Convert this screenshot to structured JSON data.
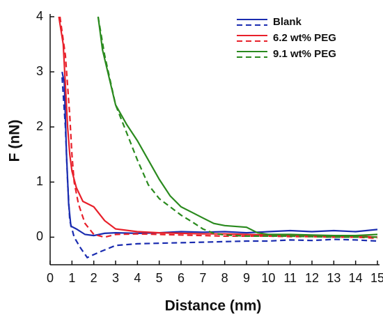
{
  "chart_data": {
    "type": "line",
    "xlabel": "Distance (nm)",
    "ylabel": "F (nN)",
    "xlim": [
      0,
      15
    ],
    "xticks": [
      0,
      1,
      2,
      3,
      4,
      5,
      6,
      7,
      8,
      9,
      10,
      11,
      12,
      13,
      14,
      15
    ],
    "ylim": [
      -0.5,
      4
    ],
    "yticks": [
      0,
      1,
      2,
      3,
      4
    ],
    "legend": "upper right",
    "series": [
      {
        "name": "Blank",
        "color": "#1a2cb0",
        "lines": [
          {
            "dash": false,
            "x": [
              0.55,
              0.65,
              0.75,
              0.85,
              0.95,
              1.2,
              1.6,
              2,
              2.5,
              3,
              4,
              5,
              6,
              7,
              8,
              9,
              10,
              11,
              12,
              13,
              14,
              15
            ],
            "values": [
              3.0,
              2.8,
              1.5,
              0.6,
              0.2,
              0.15,
              0.05,
              0.03,
              0.07,
              0.08,
              0.07,
              0.08,
              0.1,
              0.09,
              0.1,
              0.08,
              0.1,
              0.12,
              0.1,
              0.12,
              0.1,
              0.14
            ]
          },
          {
            "dash": true,
            "x": [
              0.55,
              0.7,
              0.8,
              0.9,
              1.1,
              1.4,
              1.7,
              2.2,
              3,
              4,
              5,
              6,
              7,
              8,
              9,
              10,
              11,
              12,
              13,
              14,
              15
            ],
            "values": [
              2.9,
              2.0,
              1.0,
              0.3,
              0.0,
              -0.2,
              -0.37,
              -0.28,
              -0.15,
              -0.12,
              -0.11,
              -0.1,
              -0.09,
              -0.08,
              -0.07,
              -0.07,
              -0.05,
              -0.06,
              -0.04,
              -0.05,
              -0.07
            ]
          }
        ]
      },
      {
        "name": "6.2 wt% PEG",
        "color": "#e8202a",
        "lines": [
          {
            "dash": false,
            "x": [
              0.4,
              0.6,
              0.8,
              0.9,
              1.0,
              1.2,
              1.5,
              2,
              2.5,
              3,
              4,
              5,
              6,
              7,
              8,
              9,
              10,
              11,
              12,
              13,
              14,
              15
            ],
            "values": [
              4.0,
              3.5,
              2.0,
              1.5,
              1.2,
              0.9,
              0.65,
              0.55,
              0.3,
              0.15,
              0.1,
              0.08,
              0.07,
              0.06,
              0.06,
              0.05,
              0.04,
              0.03,
              0.03,
              0.02,
              0.02,
              0.0
            ]
          },
          {
            "dash": true,
            "x": [
              0.45,
              0.7,
              0.9,
              1.0,
              1.1,
              1.3,
              1.6,
              2,
              2.5,
              3,
              4,
              5,
              6,
              7,
              8,
              9,
              10,
              11,
              12,
              13,
              14,
              15
            ],
            "values": [
              4.0,
              3.3,
              2.2,
              1.5,
              1.0,
              0.6,
              0.25,
              0.05,
              0.0,
              0.05,
              0.06,
              0.05,
              0.04,
              0.03,
              0.02,
              0.02,
              0.02,
              0.01,
              0.01,
              0.0,
              0.0,
              -0.02
            ]
          }
        ]
      },
      {
        "name": "9.1 wt% PEG",
        "color": "#2a8a1e",
        "lines": [
          {
            "dash": false,
            "x": [
              2.2,
              2.4,
              2.7,
              3,
              3.5,
              4,
              4.5,
              5,
              5.5,
              6,
              6.5,
              7,
              7.5,
              8,
              9,
              9.5,
              10,
              11,
              12,
              13,
              14,
              15
            ],
            "values": [
              4.0,
              3.4,
              2.9,
              2.4,
              2.05,
              1.75,
              1.4,
              1.05,
              0.75,
              0.55,
              0.45,
              0.35,
              0.25,
              0.21,
              0.18,
              0.08,
              0.05,
              0.05,
              0.04,
              0.03,
              0.03,
              0.05
            ]
          },
          {
            "dash": true,
            "x": [
              2.2,
              2.5,
              3,
              3.5,
              4,
              4.5,
              5,
              5.5,
              6,
              6.5,
              7,
              7.5,
              8,
              9,
              10,
              11,
              12,
              13,
              14,
              15
            ],
            "values": [
              4.0,
              3.3,
              2.4,
              1.9,
              1.4,
              0.95,
              0.7,
              0.55,
              0.4,
              0.28,
              0.15,
              0.07,
              0.04,
              0.02,
              0.02,
              0.02,
              0.01,
              0.0,
              0.0,
              0.0
            ]
          }
        ]
      }
    ]
  }
}
